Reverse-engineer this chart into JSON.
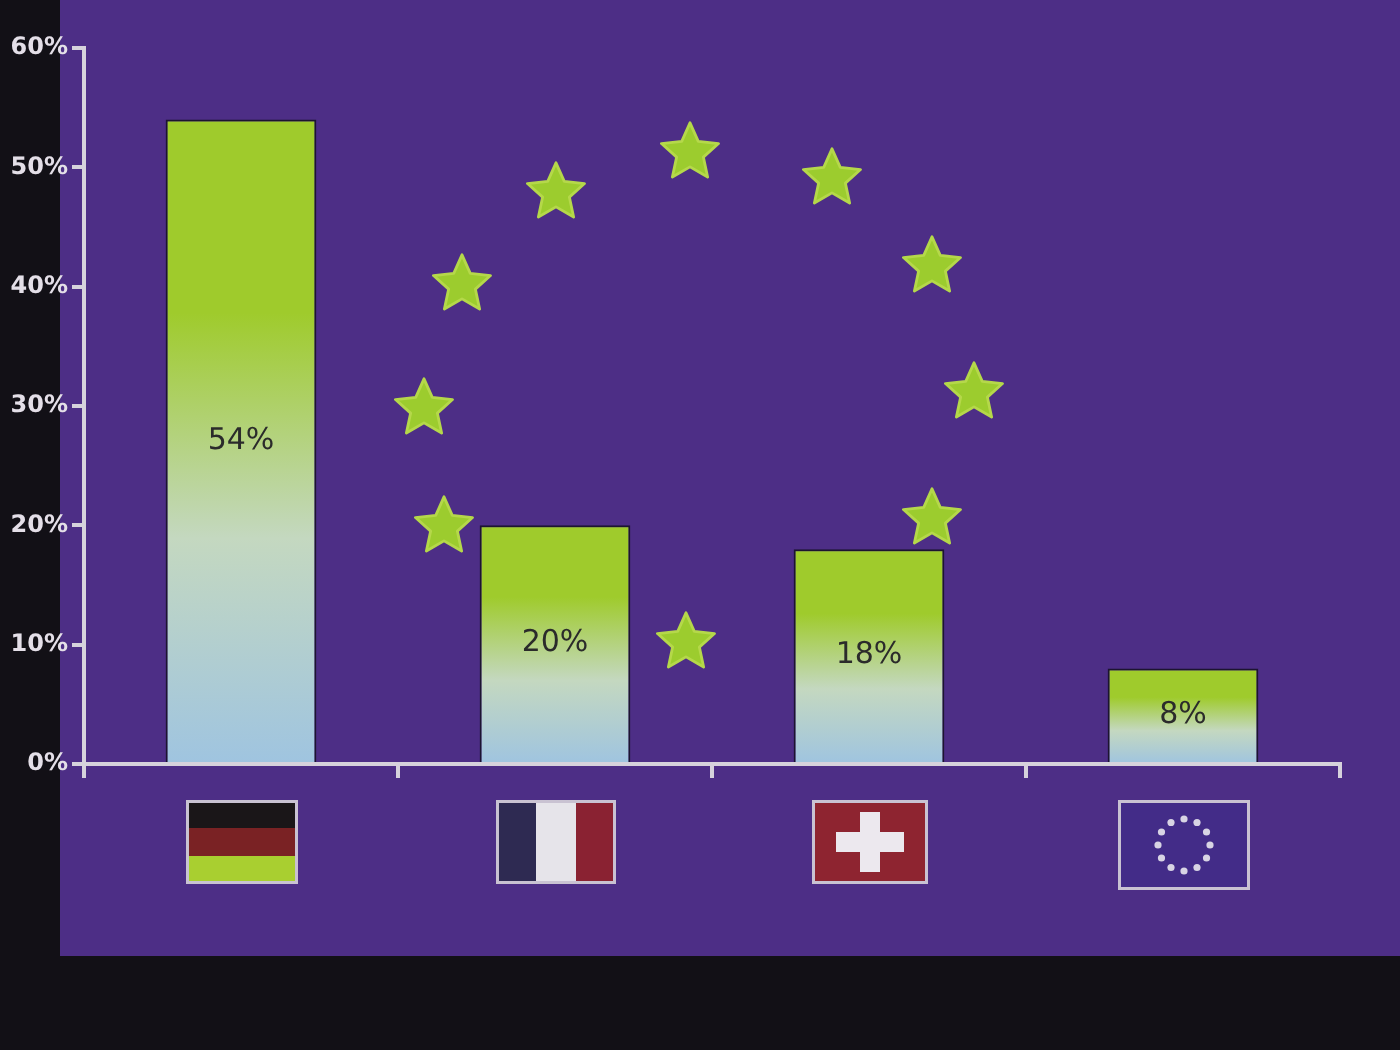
{
  "chart_data": {
    "type": "bar",
    "categories": [
      null,
      null,
      null,
      null
    ],
    "values": [
      54,
      20,
      18,
      8
    ],
    "color": "#9fcb2c",
    "value_labels": [
      "54%",
      "20%",
      "18%",
      "8%"
    ],
    "ylim": [
      0,
      60
    ],
    "yticks": [
      {
        "value": 0,
        "label": "0%"
      },
      {
        "value": 10,
        "label": "10%"
      },
      {
        "value": 20,
        "label": "20%"
      },
      {
        "value": 30,
        "label": "30%"
      },
      {
        "value": 40,
        "label": "40%"
      },
      {
        "value": 50,
        "label": "50%"
      },
      {
        "value": 60,
        "label": "60%"
      }
    ],
    "tick_labels": "y"
  }
}
